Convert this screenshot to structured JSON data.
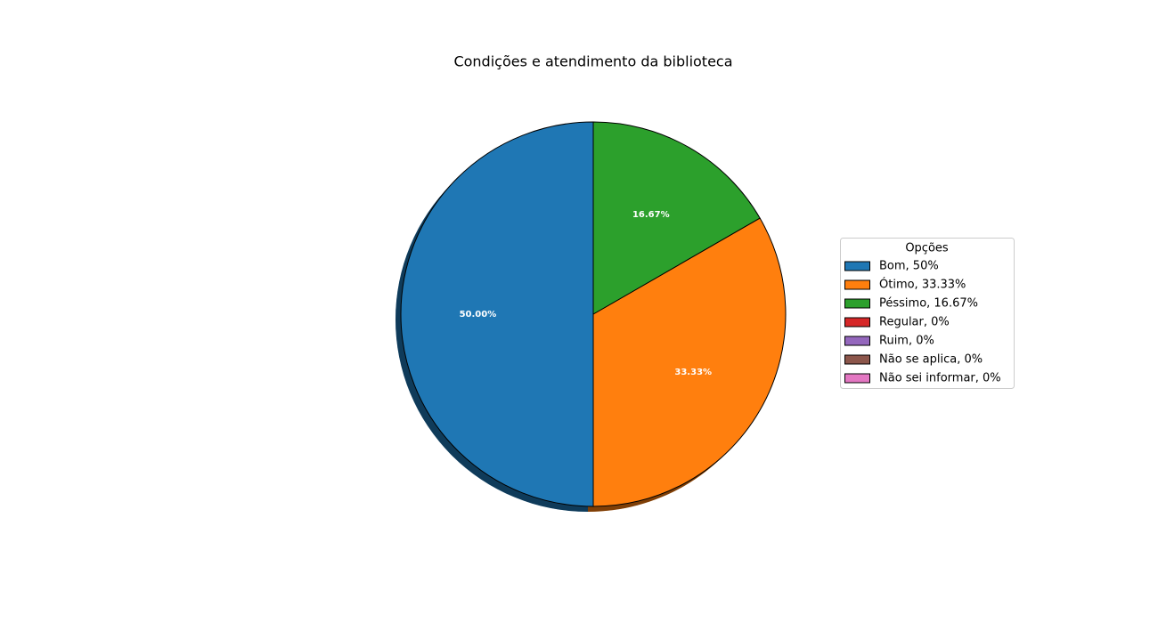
{
  "chart_data": {
    "type": "pie",
    "title": "Condições e atendimento da biblioteca",
    "categories": [
      "Bom, 50%",
      "Ótimo, 33.33%",
      "Péssimo, 16.67%",
      "Regular, 0%",
      "Ruim, 0%",
      "Não se aplica, 0%",
      "Não sei informar, 0%"
    ],
    "values": [
      50,
      33.33,
      16.67,
      0,
      0,
      0,
      0
    ],
    "value_labels": [
      "50.00%",
      "33.33%",
      "16.67%",
      null,
      null,
      null,
      null
    ],
    "colors": [
      "#1f77b4",
      "#ff7f0e",
      "#2ca02c",
      "#d62728",
      "#9467bd",
      "#8c564b",
      "#e377c2"
    ],
    "legend_title": "Opções",
    "legend": "right",
    "shadow": true
  }
}
